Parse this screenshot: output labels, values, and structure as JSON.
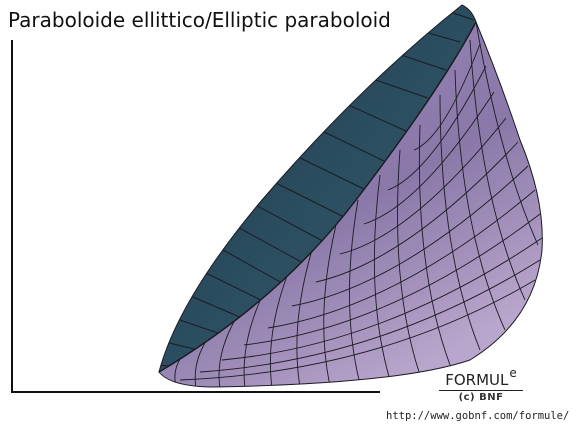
{
  "title": "Paraboloide ellittico/Elliptic paraboloid",
  "logo": {
    "name": "FORMUL",
    "superscript": "e",
    "copyright": "(c) BNF"
  },
  "url": "http://www.gobnf.com/formule/",
  "colors": {
    "outer_surface": "#8f7fab",
    "inner_surface": "#2f5163",
    "mesh_lines": "#1b1b24",
    "axes": "#111111"
  },
  "mesh": {
    "radial_lines": 16,
    "rings": 11
  }
}
